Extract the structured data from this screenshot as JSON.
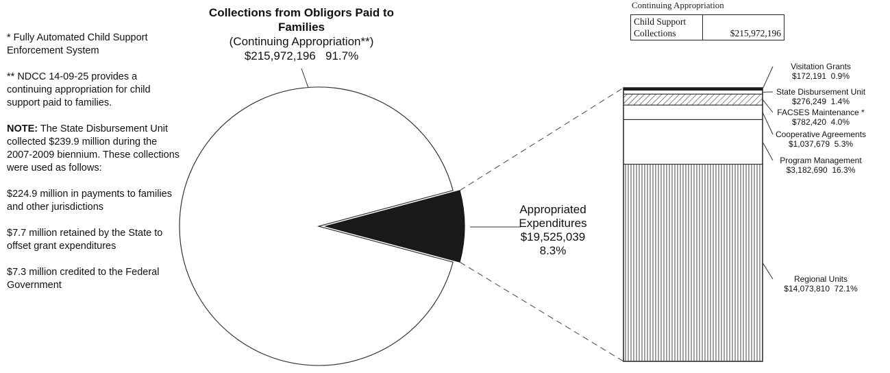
{
  "notes": {
    "footnote1": "* Fully Automated Child Support Enforcement System",
    "footnote2": "** NDCC 14-09-25 provides a continuing appropriation for child support paid to families.",
    "note_label": "NOTE:",
    "note_text": " The State Disbursement Unit collected $239.9 million during the 2007-2009 biennium.  These collections were used as follows:",
    "use1": "$224.9 million in payments to families and other jurisdictions",
    "use2": "$7.7 million retained by the State to offset grant expenditures",
    "use3": "$7.3 million credited to the Federal Government"
  },
  "table": {
    "caption": "Continuing Appropriation",
    "row_label": "Child Support Collections",
    "row_value": "$215,972,196"
  },
  "chart_data": [
    {
      "type": "pie",
      "title": "Collections from Obligors Paid to Families",
      "subtitle": "(Continuing Appropriation**)",
      "slices": [
        {
          "label": "Collections from Obligors Paid to Families",
          "value": 215972196,
          "value_text": "$215,972,196",
          "percent": 91.7,
          "percent_text": "91.7%",
          "fill": "#ffffff"
        },
        {
          "label": "Appropriated Expenditures",
          "value": 19525039,
          "value_text": "$19,525,039",
          "percent": 8.3,
          "percent_text": "8.3%",
          "fill": "#1a1a1a"
        }
      ]
    },
    {
      "type": "bar",
      "stacked": true,
      "categories": [
        "Appropriated Expenditures"
      ],
      "series": [
        {
          "name": "Regional Units",
          "value": 14073810,
          "value_text": "$14,073,810",
          "percent": 72.1,
          "percent_text": "72.1%",
          "pattern": "vlines"
        },
        {
          "name": "Program Management",
          "value": 3182690,
          "value_text": "$3,182,690",
          "percent": 16.3,
          "percent_text": "16.3%",
          "pattern": "none"
        },
        {
          "name": "Cooperative Agreements",
          "value": 1037679,
          "value_text": "$1,037,679",
          "percent": 5.3,
          "percent_text": "5.3%",
          "pattern": "none"
        },
        {
          "name": "FACSES Maintenance *",
          "value": 782420,
          "value_text": "$782,420",
          "percent": 4.0,
          "percent_text": "4.0%",
          "pattern": "diagonal"
        },
        {
          "name": "State Disbursement Unit",
          "value": 276249,
          "value_text": "$276,249",
          "percent": 1.4,
          "percent_text": "1.4%",
          "pattern": "none"
        },
        {
          "name": "Visitation Grants",
          "value": 172191,
          "value_text": "$172,191",
          "percent": 0.9,
          "percent_text": "0.9%",
          "pattern": "solid"
        }
      ]
    }
  ]
}
